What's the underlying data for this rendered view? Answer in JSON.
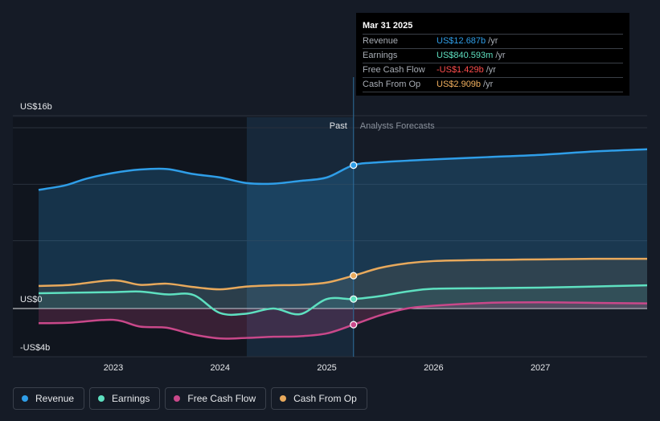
{
  "tooltip": {
    "date": "Mar 31 2025",
    "rows": [
      {
        "label": "Revenue",
        "value": "US$12.687b",
        "unit": "/yr",
        "color": "#2f9ee8"
      },
      {
        "label": "Earnings",
        "value": "US$840.593m",
        "unit": "/yr",
        "color": "#5ee0c0"
      },
      {
        "label": "Free Cash Flow",
        "value": "-US$1.429b",
        "unit": "/yr",
        "color": "#ff4d4d"
      },
      {
        "label": "Cash From Op",
        "value": "US$2.909b",
        "unit": "/yr",
        "color": "#f2b05e"
      }
    ]
  },
  "legend": [
    {
      "label": "Revenue",
      "color": "#2f9ee8"
    },
    {
      "label": "Earnings",
      "color": "#5ee0c0"
    },
    {
      "label": "Free Cash Flow",
      "color": "#c9488a"
    },
    {
      "label": "Cash From Op",
      "color": "#e8a95c"
    }
  ],
  "chart_data": {
    "type": "line",
    "title": "",
    "xlabel": "",
    "ylabel": "",
    "ylim": [
      -4,
      16
    ],
    "xlim": [
      2022.3,
      2028.0
    ],
    "y_tick_labels": [
      {
        "value": 16,
        "label": "US$16b"
      },
      {
        "value": 0,
        "label": "US$0"
      },
      {
        "value": -4,
        "label": "-US$4b"
      }
    ],
    "x_tick_labels": [
      {
        "value": 2023,
        "label": "2023"
      },
      {
        "value": 2024,
        "label": "2024"
      },
      {
        "value": 2025,
        "label": "2025"
      },
      {
        "value": 2026,
        "label": "2026"
      },
      {
        "value": 2027,
        "label": "2027"
      }
    ],
    "divider_x": 2025.25,
    "past_label": "Past",
    "forecast_label": "Analysts Forecasts",
    "series": [
      {
        "name": "Revenue",
        "color": "#2f9ee8",
        "points": [
          [
            2022.3,
            10.5
          ],
          [
            2022.55,
            10.9
          ],
          [
            2022.75,
            11.5
          ],
          [
            2023.0,
            12.0
          ],
          [
            2023.25,
            12.3
          ],
          [
            2023.5,
            12.35
          ],
          [
            2023.75,
            11.9
          ],
          [
            2024.0,
            11.6
          ],
          [
            2024.25,
            11.1
          ],
          [
            2024.5,
            11.05
          ],
          [
            2024.75,
            11.3
          ],
          [
            2025.0,
            11.6
          ],
          [
            2025.25,
            12.687
          ],
          [
            2025.5,
            12.95
          ],
          [
            2026.0,
            13.2
          ],
          [
            2026.5,
            13.4
          ],
          [
            2027.0,
            13.6
          ],
          [
            2027.5,
            13.9
          ],
          [
            2028.0,
            14.1
          ]
        ]
      },
      {
        "name": "Earnings",
        "color": "#5ee0c0",
        "points": [
          [
            2022.3,
            1.35
          ],
          [
            2022.6,
            1.4
          ],
          [
            2023.0,
            1.45
          ],
          [
            2023.25,
            1.5
          ],
          [
            2023.5,
            1.25
          ],
          [
            2023.75,
            1.2
          ],
          [
            2024.0,
            -0.4
          ],
          [
            2024.25,
            -0.45
          ],
          [
            2024.5,
            0.0
          ],
          [
            2024.75,
            -0.5
          ],
          [
            2025.0,
            0.84
          ],
          [
            2025.25,
            0.841
          ],
          [
            2025.5,
            1.1
          ],
          [
            2025.75,
            1.5
          ],
          [
            2026.0,
            1.75
          ],
          [
            2026.5,
            1.8
          ],
          [
            2027.0,
            1.85
          ],
          [
            2027.5,
            1.95
          ],
          [
            2028.0,
            2.05
          ]
        ]
      },
      {
        "name": "Free Cash Flow",
        "color": "#c9488a",
        "points": [
          [
            2022.3,
            -1.3
          ],
          [
            2022.6,
            -1.25
          ],
          [
            2023.0,
            -1.0
          ],
          [
            2023.25,
            -1.6
          ],
          [
            2023.5,
            -1.7
          ],
          [
            2023.75,
            -2.3
          ],
          [
            2024.0,
            -2.65
          ],
          [
            2024.25,
            -2.6
          ],
          [
            2024.5,
            -2.5
          ],
          [
            2024.75,
            -2.45
          ],
          [
            2025.0,
            -2.2
          ],
          [
            2025.25,
            -1.429
          ],
          [
            2025.5,
            -0.6
          ],
          [
            2025.75,
            0.0
          ],
          [
            2026.0,
            0.25
          ],
          [
            2026.5,
            0.5
          ],
          [
            2027.0,
            0.55
          ],
          [
            2027.5,
            0.5
          ],
          [
            2028.0,
            0.45
          ]
        ]
      },
      {
        "name": "Cash From Op",
        "color": "#e8a95c",
        "points": [
          [
            2022.3,
            2.0
          ],
          [
            2022.6,
            2.1
          ],
          [
            2023.0,
            2.5
          ],
          [
            2023.25,
            2.1
          ],
          [
            2023.5,
            2.2
          ],
          [
            2023.75,
            1.9
          ],
          [
            2024.0,
            1.7
          ],
          [
            2024.25,
            1.95
          ],
          [
            2024.5,
            2.05
          ],
          [
            2024.75,
            2.1
          ],
          [
            2025.0,
            2.3
          ],
          [
            2025.25,
            2.909
          ],
          [
            2025.5,
            3.6
          ],
          [
            2025.75,
            4.0
          ],
          [
            2026.0,
            4.2
          ],
          [
            2026.5,
            4.3
          ],
          [
            2027.0,
            4.35
          ],
          [
            2027.5,
            4.4
          ],
          [
            2028.0,
            4.4
          ]
        ]
      }
    ],
    "highlight_points": [
      {
        "series": "Revenue",
        "x": 2025.25,
        "y": 12.687
      },
      {
        "series": "Earnings",
        "x": 2025.25,
        "y": 0.841
      },
      {
        "series": "Free Cash Flow",
        "x": 2025.25,
        "y": -1.429
      },
      {
        "series": "Cash From Op",
        "x": 2025.25,
        "y": 2.909
      }
    ]
  }
}
